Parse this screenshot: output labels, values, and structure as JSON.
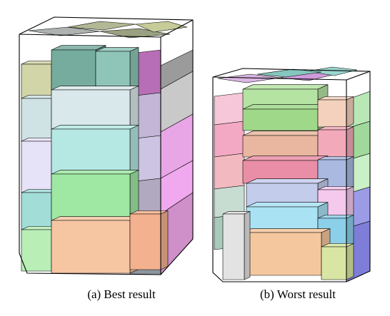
{
  "figure": {
    "captions": {
      "a": "(a) Best result",
      "b": "(b) Worst result"
    },
    "container_a": {
      "palette": [
        "#9b9b9b",
        "#c9c9c9",
        "#e9a6e6",
        "#f0a9ee",
        "#cf8fc9",
        "#b76eb6",
        "#c3b6d6",
        "#cdc3e2",
        "#b0a9bf",
        "#8d959d",
        "#a5aaa7",
        "#8e9673",
        "#a9b087",
        "#c0c58d",
        "#d1d5a8",
        "#76ac9e",
        "#8fc5b8",
        "#cfe2e4",
        "#d9e8ea",
        "#e6e2f7",
        "#b5e7e3",
        "#a3ddd8",
        "#9fe8a3",
        "#b9eeb7",
        "#f6c6a3",
        "#f4b18f",
        "#e8d69a",
        "#d7c67e",
        "#f6c5e7",
        "#d9a6e3",
        "#c8a1de",
        "#b9b9e8",
        "#a4a4a4",
        "#c2c2c2",
        "#99e6d9",
        "#cfe7b0"
      ]
    },
    "container_b": {
      "palette": [
        "#b9e8b7",
        "#9fd99c",
        "#c9f0c6",
        "#9c9ce6",
        "#7e7ed9",
        "#f6c7d8",
        "#f3a9c3",
        "#f2bac0",
        "#c8ddd2",
        "#a9cabb",
        "#d6aee0",
        "#c98fd6",
        "#8fd1c8",
        "#77c1b7",
        "#b5e3a2",
        "#9fd889",
        "#f4d1bd",
        "#e9b79f",
        "#f2a9b9",
        "#e98ea6",
        "#a9b9e0",
        "#c4ccec",
        "#f5c8ee",
        "#a9e2f3",
        "#8ccfe9",
        "#f4c79e",
        "#d9e6a3",
        "#e3e3e3",
        "#bdb0c8",
        "#e7cbe3",
        "#a5a5a5",
        "#f0c0a5"
      ]
    }
  }
}
